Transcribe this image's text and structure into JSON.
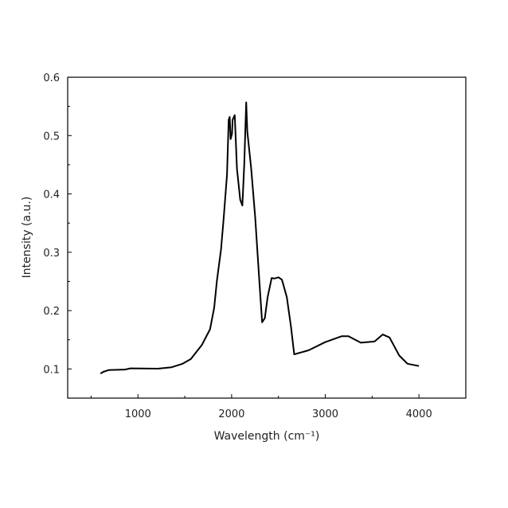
{
  "chart_data": {
    "type": "line",
    "title": "",
    "xlabel": "Wavelength (cm⁻¹)",
    "ylabel": "Intensity (a.u.)",
    "xlim": [
      250,
      4500
    ],
    "ylim": [
      0.05,
      0.6
    ],
    "xticks": [
      1000,
      2000,
      3000,
      4000
    ],
    "xtick_labels": [
      "1000",
      "2000",
      "3000",
      "4000"
    ],
    "xminor": [
      500,
      1500,
      2500,
      3500
    ],
    "yticks": [
      0.1,
      0.2,
      0.3,
      0.4,
      0.5,
      0.6
    ],
    "ytick_labels": [
      "0.1",
      "0.2",
      "0.3",
      "0.4",
      "0.5",
      "0.6"
    ],
    "yminor": [
      0.15,
      0.25,
      0.35,
      0.45,
      0.55
    ],
    "grid": false,
    "series": [
      {
        "name": "spectrum",
        "color": "#000000",
        "x": [
          600,
          630,
          687,
          862,
          921,
          1214,
          1360,
          1477,
          1565,
          1682,
          1770,
          1814,
          1843,
          1887,
          1916,
          1951,
          1969,
          1980,
          1989,
          2004,
          2010,
          2033,
          2057,
          2092,
          2115,
          2135,
          2156,
          2168,
          2209,
          2252,
          2296,
          2326,
          2355,
          2384,
          2428,
          2457,
          2501,
          2537,
          2589,
          2633,
          2668,
          2823,
          2999,
          3174,
          3247,
          3379,
          3526,
          3613,
          3686,
          3789,
          3877,
          4000
        ],
        "y": [
          0.092,
          0.095,
          0.098,
          0.099,
          0.101,
          0.1005,
          0.103,
          0.109,
          0.117,
          0.141,
          0.168,
          0.205,
          0.251,
          0.305,
          0.36,
          0.433,
          0.527,
          0.532,
          0.494,
          0.503,
          0.527,
          0.535,
          0.443,
          0.39,
          0.38,
          0.452,
          0.557,
          0.507,
          0.443,
          0.36,
          0.251,
          0.18,
          0.187,
          0.223,
          0.256,
          0.255,
          0.257,
          0.253,
          0.223,
          0.173,
          0.125,
          0.132,
          0.146,
          0.156,
          0.156,
          0.145,
          0.147,
          0.159,
          0.154,
          0.123,
          0.109,
          0.105
        ]
      }
    ]
  }
}
